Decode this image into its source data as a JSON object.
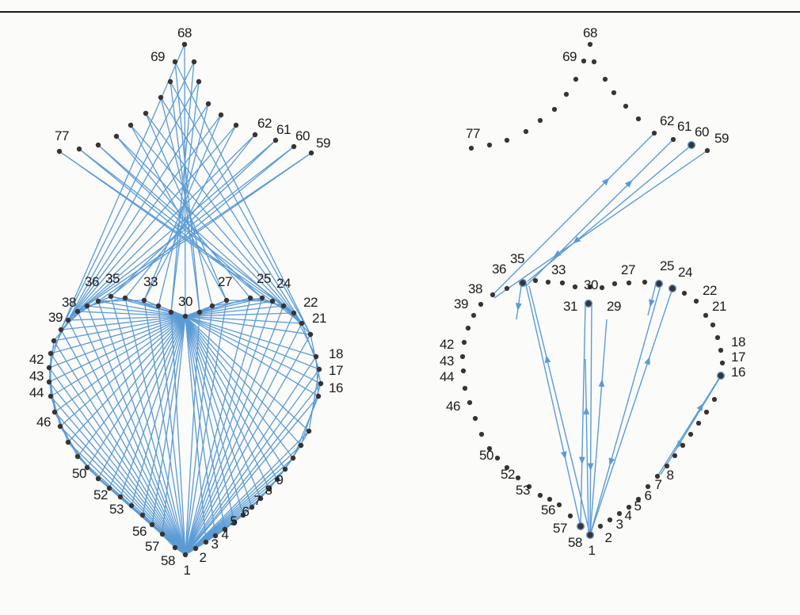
{
  "panels": [
    {
      "id": "left",
      "labels": [
        "68",
        "69",
        "77",
        "62",
        "61",
        "60",
        "59",
        "36",
        "35",
        "33",
        "27",
        "25",
        "24",
        "38",
        "30",
        "22",
        "39",
        "21",
        "42",
        "18",
        "43",
        "17",
        "44",
        "16",
        "46",
        "50",
        "9",
        "52",
        "8",
        "53",
        "7",
        "6",
        "56",
        "5",
        "4",
        "57",
        "3",
        "58",
        "2",
        "1"
      ]
    },
    {
      "id": "right",
      "labels": [
        "68",
        "69",
        "77",
        "62",
        "61",
        "60",
        "59",
        "35",
        "36",
        "33",
        "27",
        "25",
        "24",
        "38",
        "30",
        "22",
        "39",
        "31",
        "29",
        "21",
        "42",
        "18",
        "43",
        "17",
        "44",
        "16",
        "46",
        "50",
        "52",
        "8",
        "53",
        "7",
        "6",
        "56",
        "5",
        "4",
        "57",
        "3",
        "58",
        "2",
        "1"
      ]
    }
  ]
}
